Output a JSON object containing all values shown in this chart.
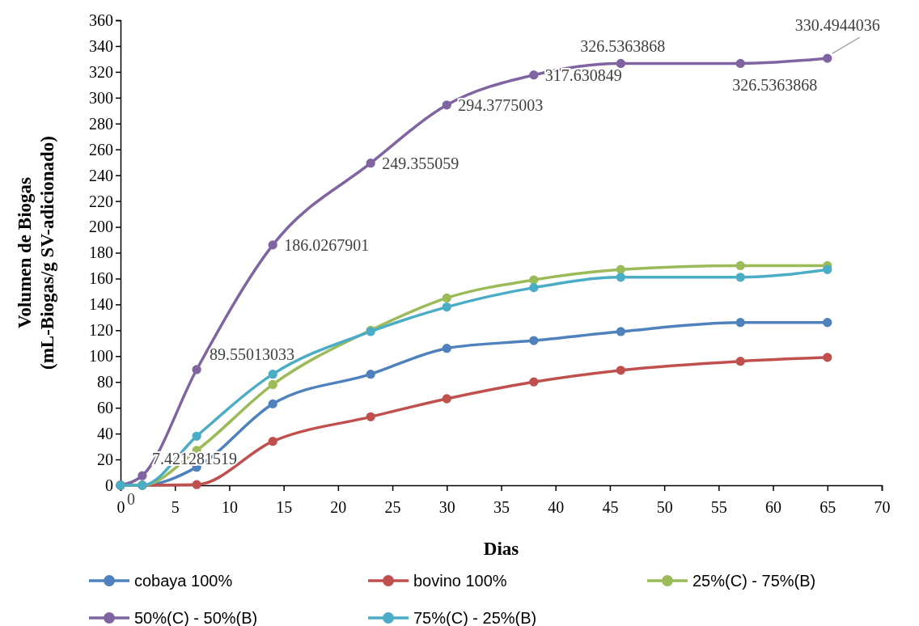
{
  "chart_data": {
    "type": "line",
    "xlabel": "Dias",
    "ylabel": "Volumen de Biogas\n(mL-Biogas/g SV-adicionado)",
    "x": [
      0,
      2,
      7,
      14,
      23,
      30,
      38,
      46,
      57,
      65
    ],
    "xlim": [
      0,
      70
    ],
    "xticks": [
      0,
      5,
      10,
      15,
      20,
      25,
      30,
      35,
      40,
      45,
      50,
      55,
      60,
      65,
      70
    ],
    "ylim": [
      0,
      360
    ],
    "yticks": [
      0,
      20,
      40,
      60,
      80,
      100,
      120,
      140,
      160,
      180,
      200,
      220,
      240,
      260,
      280,
      300,
      320,
      340,
      360
    ],
    "grid": false,
    "legend": "bottom",
    "marker": "circle",
    "line_style": "solid",
    "series": [
      {
        "name": "cobaya 100%",
        "color": "#4f81bd",
        "values": [
          0,
          0,
          14,
          63,
          86,
          106,
          112,
          119,
          126,
          126
        ]
      },
      {
        "name": "bovino 100%",
        "color": "#c0504d",
        "values": [
          0,
          0,
          0.5,
          34,
          53,
          67,
          80,
          89,
          96,
          99
        ]
      },
      {
        "name": "25%(C) - 75%(B)",
        "color": "#9bbb59",
        "values": [
          0,
          0,
          27,
          78,
          120,
          145,
          159,
          167,
          170,
          170
        ]
      },
      {
        "name": "50%(C) - 50%(B)",
        "color": "#8064a2",
        "values": [
          0,
          7.421281519,
          89.55013033,
          186.0267901,
          249.355059,
          294.3775003,
          317.630849,
          326.5363868,
          326.5363868,
          330.4944036
        ],
        "value_labels": [
          "0",
          "7.421281519",
          "89.55013033",
          "186.0267901",
          "249.355059",
          "294.3775003",
          "317.630849",
          "326.5363868",
          "326.5363868",
          "330.4944036"
        ]
      },
      {
        "name": "75%(C) - 25%(B)",
        "color": "#4bacc6",
        "values": [
          0,
          0,
          38,
          86,
          119,
          138,
          153,
          161,
          161,
          167
        ]
      }
    ]
  }
}
